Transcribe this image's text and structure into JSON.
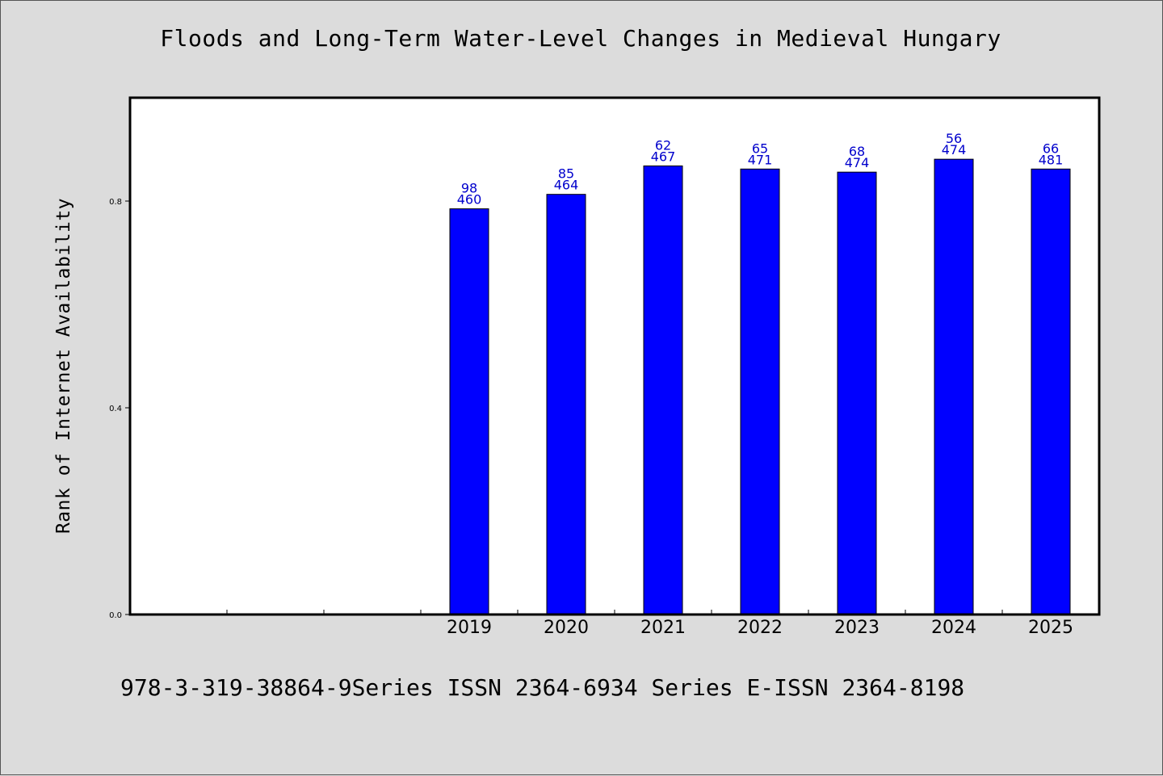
{
  "title": "Floods and Long-Term Water-Level Changes in Medieval Hungary",
  "footer": "978-3-319-38864-9Series ISSN 2364-6934 Series E-ISSN 2364-8198",
  "colors": {
    "bar": "#0000ff",
    "label": "#0000cc",
    "plot_bg": "#ffffff",
    "page_bg": "#dcdcdc"
  },
  "chart_data": {
    "type": "bar",
    "title": "Floods and Long-Term Water-Level Changes in Medieval Hungary",
    "xlabel": "",
    "ylabel": "Rank of Internet Availability",
    "categories": [
      "",
      "",
      "",
      "2019",
      "2020",
      "2021",
      "2022",
      "2023",
      "2024",
      "2025"
    ],
    "values": [
      null,
      null,
      null,
      0.785,
      0.813,
      0.868,
      0.862,
      0.856,
      0.881,
      0.862
    ],
    "bar_labels_top": [
      "",
      "",
      "",
      "98",
      "85",
      "62",
      "65",
      "68",
      "56",
      "66"
    ],
    "bar_labels_bottom": [
      "",
      "",
      "",
      "460",
      "464",
      "467",
      "471",
      "474",
      "474",
      "481"
    ],
    "ylim": [
      0,
      1.0
    ],
    "yticks": [
      0.0,
      0.4,
      0.8
    ],
    "ytick_labels": [
      "0.0",
      "0.4",
      "0.8"
    ],
    "grid": false,
    "legend": "none"
  }
}
